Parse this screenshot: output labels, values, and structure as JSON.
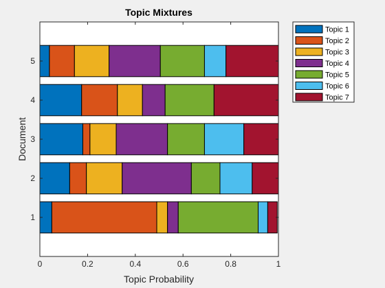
{
  "chart_data": {
    "type": "bar",
    "orientation": "horizontal",
    "stacked": true,
    "title": "Topic Mixtures",
    "xlabel": "Topic Probability",
    "ylabel": "Document",
    "xlim": [
      0,
      1
    ],
    "ylim": [
      0,
      6
    ],
    "xticks": [
      "0",
      "0.2",
      "0.4",
      "0.6",
      "0.8",
      "1"
    ],
    "yticks": [
      "1",
      "2",
      "3",
      "4",
      "5"
    ],
    "categories": [
      "1",
      "2",
      "3",
      "4",
      "5"
    ],
    "legend_position": "outside-top-right",
    "grid": false,
    "series": [
      {
        "name": "Topic 1",
        "color": "#0072BD",
        "values": [
          0.05,
          0.125,
          0.18,
          0.175,
          0.04
        ]
      },
      {
        "name": "Topic 2",
        "color": "#D95319",
        "values": [
          0.44,
          0.07,
          0.03,
          0.15,
          0.105
        ]
      },
      {
        "name": "Topic 3",
        "color": "#EDB120",
        "values": [
          0.045,
          0.15,
          0.11,
          0.105,
          0.145
        ]
      },
      {
        "name": "Topic 4",
        "color": "#7E2F8E",
        "values": [
          0.045,
          0.29,
          0.215,
          0.095,
          0.215
        ]
      },
      {
        "name": "Topic 5",
        "color": "#77AC30",
        "values": [
          0.335,
          0.12,
          0.155,
          0.205,
          0.185
        ]
      },
      {
        "name": "Topic 6",
        "color": "#4DBEEE",
        "values": [
          0.04,
          0.135,
          0.165,
          0.0,
          0.09
        ]
      },
      {
        "name": "Topic 7",
        "color": "#A2142F",
        "values": [
          0.04,
          0.11,
          0.145,
          0.27,
          0.22
        ]
      }
    ]
  }
}
